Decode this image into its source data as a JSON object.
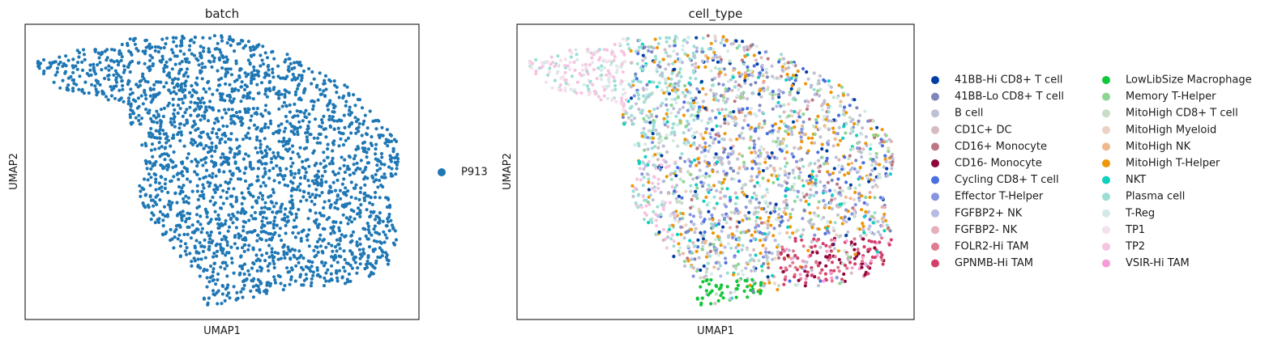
{
  "chart_data": [
    {
      "type": "scatter",
      "title": "batch",
      "xlabel": "UMAP1",
      "ylabel": "UMAP2",
      "grid": false,
      "legend_placement": "right",
      "series": [
        {
          "name": "P913",
          "color": "#1f77b4"
        }
      ]
    },
    {
      "type": "scatter",
      "title": "cell_type",
      "xlabel": "UMAP1",
      "ylabel": "UMAP2",
      "grid": false,
      "legend_placement": "right, two columns",
      "series": [
        {
          "name": "41BB-Hi CD8+ T cell",
          "color": "#023fa5"
        },
        {
          "name": "41BB-Lo CD8+ T cell",
          "color": "#7d87b9"
        },
        {
          "name": "B cell",
          "color": "#bec1d4"
        },
        {
          "name": "CD1C+ DC",
          "color": "#d6bcc0"
        },
        {
          "name": "CD16+ Monocyte",
          "color": "#bb7784"
        },
        {
          "name": "CD16- Monocyte",
          "color": "#8e063b"
        },
        {
          "name": "Cycling CD8+ T cell",
          "color": "#4a6fe3"
        },
        {
          "name": "Effector T-Helper",
          "color": "#8595e1"
        },
        {
          "name": "FGFBP2+ NK",
          "color": "#b5bbe3"
        },
        {
          "name": "FGFBP2- NK",
          "color": "#e6afb9"
        },
        {
          "name": "FOLR2-Hi TAM",
          "color": "#e07b91"
        },
        {
          "name": "GPNMB-Hi TAM",
          "color": "#d33f6a"
        },
        {
          "name": "LowLibSize Macrophage",
          "color": "#11c638"
        },
        {
          "name": "Memory T-Helper",
          "color": "#8dd593"
        },
        {
          "name": "MitoHigh CD8+ T cell",
          "color": "#c6dec7"
        },
        {
          "name": "MitoHigh Myeloid",
          "color": "#ead3c6"
        },
        {
          "name": "MitoHigh NK",
          "color": "#f0b98d"
        },
        {
          "name": "MitoHigh T-Helper",
          "color": "#ef9708"
        },
        {
          "name": "NKT",
          "color": "#0fcfc0"
        },
        {
          "name": "Plasma cell",
          "color": "#9cded6"
        },
        {
          "name": "T-Reg",
          "color": "#d5eae7"
        },
        {
          "name": "TP1",
          "color": "#f3e1eb"
        },
        {
          "name": "TP2",
          "color": "#f6c4e1"
        },
        {
          "name": "VSIR-Hi TAM",
          "color": "#f79cd4"
        }
      ]
    }
  ]
}
